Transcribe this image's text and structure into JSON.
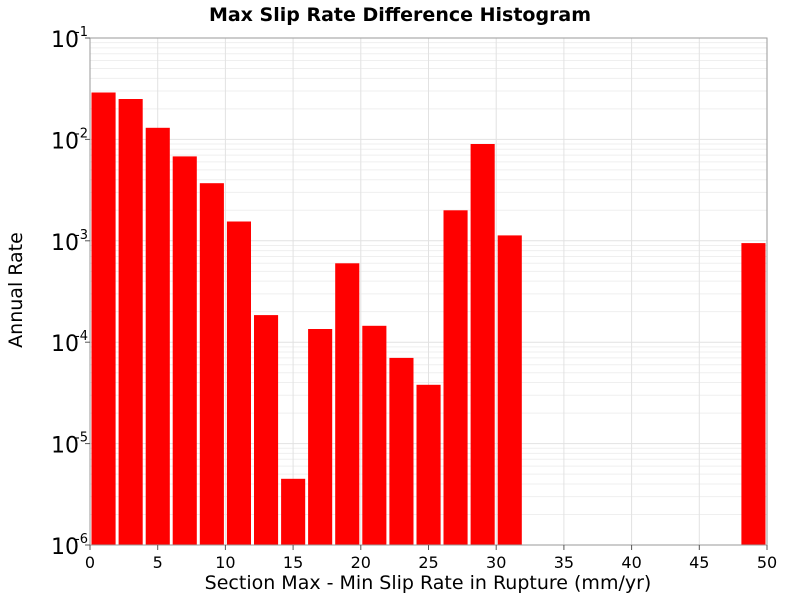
{
  "chart_data": {
    "type": "bar",
    "title": "Max Slip Rate Difference Histogram",
    "xlabel": "Section Max - Min Slip Rate in Rupture (mm/yr)",
    "ylabel": "Annual Rate",
    "xlim": [
      0,
      50
    ],
    "ylim": [
      1e-06,
      0.1
    ],
    "yscale": "log",
    "grid": true,
    "bar_color": "#ff0000",
    "x_ticks": [
      "0",
      "5",
      "10",
      "15",
      "20",
      "25",
      "30",
      "35",
      "40",
      "45",
      "50"
    ],
    "y_ticks": [
      {
        "base": "10",
        "exp": "-6",
        "value": 1e-06
      },
      {
        "base": "10",
        "exp": "-5",
        "value": 1e-05
      },
      {
        "base": "10",
        "exp": "-4",
        "value": 0.0001
      },
      {
        "base": "10",
        "exp": "-3",
        "value": 0.001
      },
      {
        "base": "10",
        "exp": "-2",
        "value": 0.01
      },
      {
        "base": "10",
        "exp": "-1",
        "value": 0.1
      }
    ],
    "bin_width": 2,
    "bars": [
      {
        "x": 1,
        "value": 0.029
      },
      {
        "x": 3,
        "value": 0.025
      },
      {
        "x": 5,
        "value": 0.013
      },
      {
        "x": 7,
        "value": 0.0068
      },
      {
        "x": 9,
        "value": 0.0037
      },
      {
        "x": 11,
        "value": 0.00155
      },
      {
        "x": 13,
        "value": 0.000185
      },
      {
        "x": 15,
        "value": 4.5e-06
      },
      {
        "x": 17,
        "value": 0.000135
      },
      {
        "x": 19,
        "value": 0.0006
      },
      {
        "x": 21,
        "value": 0.000145
      },
      {
        "x": 23,
        "value": 7e-05
      },
      {
        "x": 25,
        "value": 3.8e-05
      },
      {
        "x": 27,
        "value": 0.002
      },
      {
        "x": 29,
        "value": 0.009
      },
      {
        "x": 31,
        "value": 0.00113
      },
      {
        "x": 49,
        "value": 0.00095
      }
    ]
  }
}
